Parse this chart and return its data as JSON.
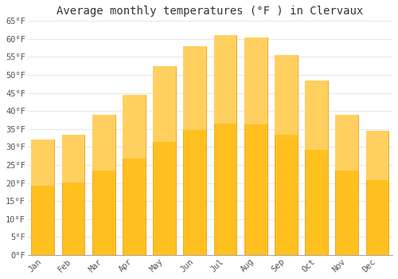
{
  "title": "Average monthly temperatures (°F ) in Clervaux",
  "months": [
    "Jan",
    "Feb",
    "Mar",
    "Apr",
    "May",
    "Jun",
    "Jul",
    "Aug",
    "Sep",
    "Oct",
    "Nov",
    "Dec"
  ],
  "values": [
    32,
    33.5,
    39,
    44.5,
    52.5,
    58,
    61,
    60.5,
    55.5,
    48.5,
    39,
    34.5
  ],
  "bar_color_top": "#FFC020",
  "bar_color_bottom": "#FFAA00",
  "bar_edge_color": "#E89000",
  "ylim": [
    0,
    65
  ],
  "yticks": [
    0,
    5,
    10,
    15,
    20,
    25,
    30,
    35,
    40,
    45,
    50,
    55,
    60,
    65
  ],
  "background_color": "#FFFFFF",
  "grid_color": "#E8E8E8",
  "title_fontsize": 10,
  "tick_fontsize": 7.5
}
